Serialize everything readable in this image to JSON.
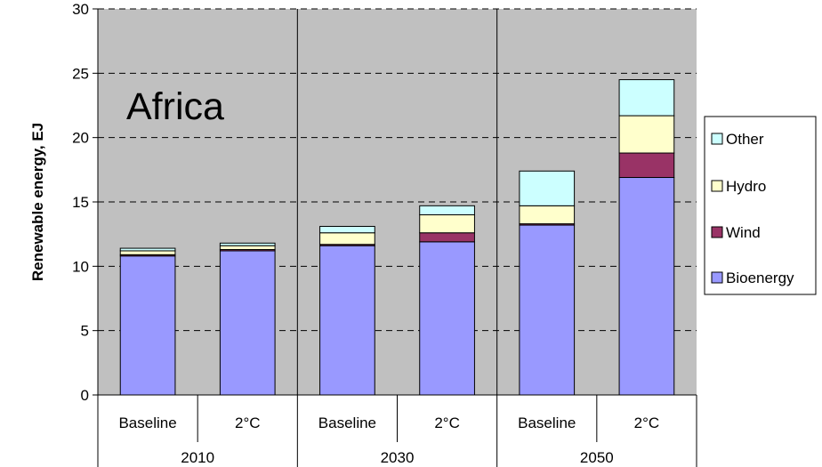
{
  "chart_data": {
    "type": "bar",
    "stacked": true,
    "title": "Africa",
    "ylabel": "Renewable energy, EJ",
    "xlabel": "",
    "ylim": [
      0,
      30
    ],
    "yticks": [
      "0",
      "5",
      "10",
      "15",
      "20",
      "25",
      "30"
    ],
    "grid": true,
    "legend_position": "right",
    "groups": [
      "2010",
      "2030",
      "2050"
    ],
    "categories": [
      "Baseline",
      "2°C",
      "Baseline",
      "2°C",
      "Baseline",
      "2°C"
    ],
    "series": [
      {
        "name": "Bioenergy",
        "color": "#9999ff",
        "values": [
          10.8,
          11.2,
          11.6,
          11.9,
          13.2,
          16.9
        ]
      },
      {
        "name": "Wind",
        "color": "#993366",
        "values": [
          0.1,
          0.1,
          0.1,
          0.7,
          0.1,
          1.9
        ]
      },
      {
        "name": "Hydro",
        "color": "#ffffcc",
        "values": [
          0.3,
          0.3,
          0.9,
          1.4,
          1.4,
          2.9
        ]
      },
      {
        "name": "Other",
        "color": "#ccffff",
        "values": [
          0.2,
          0.2,
          0.5,
          0.7,
          2.7,
          2.8
        ]
      }
    ],
    "colors": {
      "plot_background": "#c0c0c0"
    }
  }
}
